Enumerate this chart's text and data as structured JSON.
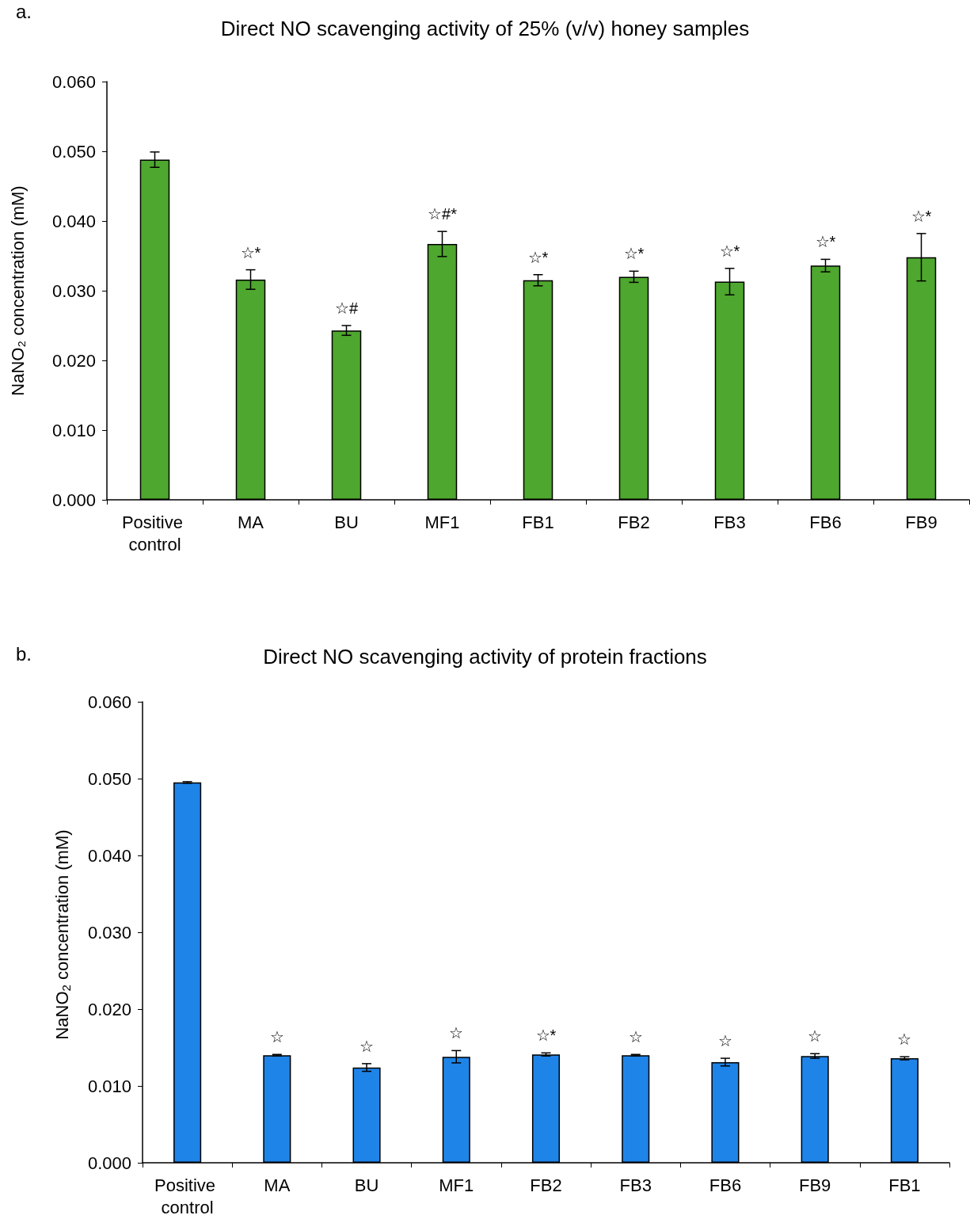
{
  "chart_data": [
    {
      "type": "bar",
      "title": "Direct NO scavenging activity of 25% (v/v) honey samples",
      "ylabel": "NaNO₂ concentration (mM)",
      "categories": [
        "Positive control",
        "MA",
        "BU",
        "MF1",
        "FB1",
        "FB2",
        "FB3",
        "FB6",
        "FB9"
      ],
      "values": [
        0.0488,
        0.0316,
        0.0243,
        0.0367,
        0.0315,
        0.032,
        0.0313,
        0.0336,
        0.0348
      ],
      "errors": [
        0.0011,
        0.0014,
        0.0007,
        0.0018,
        0.0008,
        0.0008,
        0.0019,
        0.0009,
        0.0034
      ],
      "color": "#4ea72e",
      "ylim": [
        0,
        0.06
      ],
      "yticks": [
        {
          "value": 0,
          "label": "0.000"
        },
        {
          "value": 0.01,
          "label": "0.010"
        },
        {
          "value": 0.02,
          "label": "0.020"
        },
        {
          "value": 0.03,
          "label": "0.030"
        },
        {
          "value": 0.04,
          "label": "0.040"
        },
        {
          "value": 0.05,
          "label": "0.050"
        },
        {
          "value": 0.06,
          "label": "0.060"
        }
      ],
      "grid": false,
      "annotations": [
        "a.",
        "☆*",
        "☆#",
        "☆#*",
        "☆*",
        "☆*",
        "☆*",
        "☆*",
        "☆*"
      ]
    },
    {
      "type": "bar",
      "title": "Direct NO scavenging activity of protein fractions",
      "ylabel": "NaNO$_{2}$ concentration (mM)",
      "categories": [
        "Positive control",
        "MA",
        "BU",
        "MF1",
        "FB2",
        "FB3",
        "FB6",
        "FB9",
        "FB1"
      ],
      "values": [
        0.0495,
        0.014,
        0.0124,
        0.0138,
        0.0141,
        0.014,
        0.0131,
        0.0139,
        0.0136
      ],
      "errors": [
        0.0001,
        0.0001,
        0.0005,
        0.0008,
        0.0002,
        0.0001,
        0.0005,
        0.0003,
        0.0002
      ],
      "color": "#1f84e8",
      "ylim": [
        0,
        0.06
      ],
      "yticks": [
        {
          "value": 0,
          "label": "0.000"
        },
        {
          "value": 0.01,
          "label": "0.010"
        },
        {
          "value": 0.02,
          "label": "0.020"
        },
        {
          "value": 0.03,
          "label": "0.030"
        },
        {
          "value": 0.04,
          "label": "0.040"
        },
        {
          "value": 0.05,
          "label": "0.050"
        },
        {
          "value": 0.06,
          "label": "0.060"
        }
      ],
      "grid": false,
      "annotations": [
        "b.",
        "☆",
        "☆",
        "☆",
        "☆*",
        "☆",
        "☆",
        "☆",
        "☆"
      ]
    }
  ]
}
